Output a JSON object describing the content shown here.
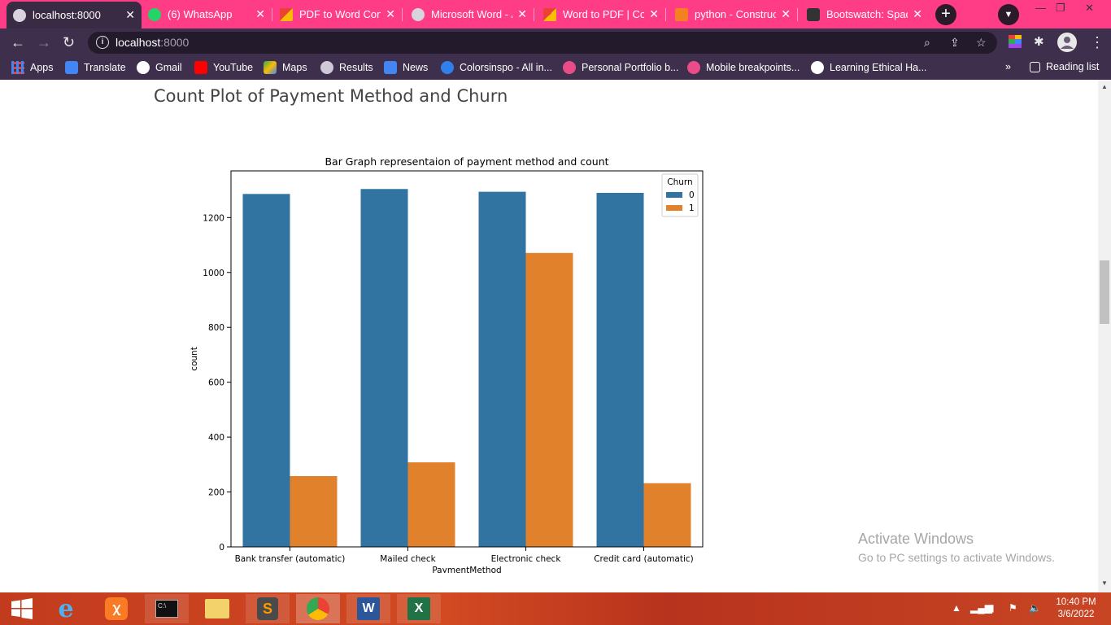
{
  "tabs": [
    {
      "title": "localhost:8000",
      "favicon_color": "#ffffff",
      "active": true
    },
    {
      "title": "(6) WhatsApp",
      "favicon_color": "#25d366",
      "active": false
    },
    {
      "title": "PDF to Word Conv",
      "favicon_color": "#ea4335",
      "active": false
    },
    {
      "title": "Microsoft Word - /",
      "favicon_color": "#ffffff",
      "active": false
    },
    {
      "title": "Word to PDF | Con",
      "favicon_color": "#ea4335",
      "active": false
    },
    {
      "title": "python - Construc",
      "favicon_color": "#f48024",
      "active": false
    },
    {
      "title": "Bootswatch: Space",
      "favicon_color": "#ffffff",
      "active": false
    }
  ],
  "new_tab_label": "+",
  "address_bar": {
    "host": "localhost",
    "port": ":8000"
  },
  "bookmarks": [
    {
      "label": "Apps",
      "icon": "apps-grid-icon",
      "color": "#4285f4"
    },
    {
      "label": "Translate",
      "icon": "translate-icon",
      "color": "#4285f4"
    },
    {
      "label": "Gmail",
      "icon": "google-icon",
      "color": "#ffffff"
    },
    {
      "label": "YouTube",
      "icon": "youtube-icon",
      "color": "#ff0000"
    },
    {
      "label": "Maps",
      "icon": "maps-icon",
      "color": "#34a853"
    },
    {
      "label": "Results",
      "icon": "globe-icon",
      "color": "#dddddd"
    },
    {
      "label": "News",
      "icon": "news-icon",
      "color": "#4285f4"
    },
    {
      "label": "Colorsinspo - All in...",
      "icon": "colorsinspo-icon",
      "color": "#2f80ed"
    },
    {
      "label": "Personal Portfolio b...",
      "icon": "dribbble-icon",
      "color": "#ea4c89"
    },
    {
      "label": "Mobile breakpoints...",
      "icon": "dribbble-icon",
      "color": "#ea4c89"
    },
    {
      "label": "Learning Ethical Ha...",
      "icon": "udemy-icon",
      "color": "#ffffff"
    }
  ],
  "bookmarks_overflow": "»",
  "reading_list": "Reading list",
  "page": {
    "heading": "Count Plot of Payment Method and Churn"
  },
  "chart_data": {
    "type": "bar",
    "title": "Bar Graph representaion of payment method and count",
    "xlabel": "PaymentMethod",
    "ylabel": "count",
    "categories": [
      "Bank transfer (automatic)",
      "Mailed check",
      "Electronic check",
      "Credit card (automatic)"
    ],
    "series": [
      {
        "name": "0",
        "color": "#3274a1",
        "values": [
          1286,
          1304,
          1294,
          1290
        ]
      },
      {
        "name": "1",
        "color": "#e1812c",
        "values": [
          258,
          308,
          1071,
          232
        ]
      }
    ],
    "yticks": [
      "0",
      "200",
      "400",
      "600",
      "800",
      "1000",
      "1200"
    ],
    "ylim": [
      0,
      1370
    ],
    "legend_title": "Churn",
    "legend_position": "top-right",
    "grid": false
  },
  "watermark": {
    "line1": "Activate Windows",
    "line2": "Go to PC settings to activate Windows."
  },
  "clock": {
    "time": "10:40 PM",
    "date": "3/6/2022"
  }
}
